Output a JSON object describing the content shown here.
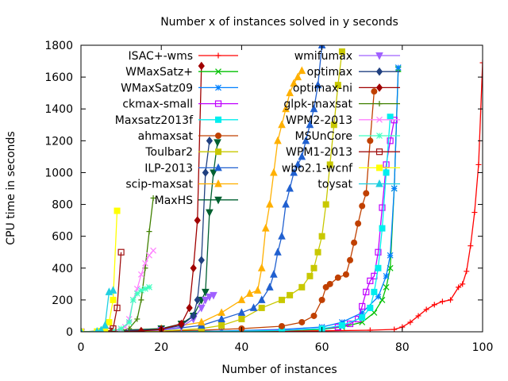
{
  "chart_data": {
    "type": "line",
    "title": "Number x of instances solved in y seconds",
    "xlabel": "Number of instances",
    "ylabel": "CPU time in seconds",
    "xlim": [
      0,
      100
    ],
    "ylim": [
      0,
      1800
    ],
    "xticks": [
      0,
      20,
      40,
      60,
      80,
      100
    ],
    "yticks": [
      0,
      200,
      400,
      600,
      800,
      1000,
      1200,
      1400,
      1600,
      1800
    ],
    "grid": false,
    "legend_position": "top-right, two columns inside plot",
    "series": [
      {
        "name": "ISAC+-wms",
        "color": "#ff0000",
        "marker": "plus",
        "x": [
          0,
          20,
          40,
          60,
          72,
          78,
          80,
          82,
          84,
          86,
          88,
          90,
          92,
          94,
          95,
          96,
          97,
          98,
          99,
          100
        ],
        "y": [
          0,
          2,
          4,
          6,
          10,
          15,
          30,
          60,
          100,
          140,
          170,
          190,
          200,
          280,
          300,
          380,
          540,
          750,
          1050,
          1690
        ]
      },
      {
        "name": "WMaxSatz+",
        "color": "#00c000",
        "marker": "x",
        "x": [
          0,
          30,
          50,
          60,
          65,
          70,
          73,
          75,
          76,
          77,
          78,
          79
        ],
        "y": [
          0,
          2,
          8,
          15,
          30,
          60,
          120,
          200,
          280,
          400,
          900,
          1650
        ]
      },
      {
        "name": "WMaxSatz09",
        "color": "#0080ff",
        "marker": "star",
        "x": [
          0,
          35,
          50,
          60,
          65,
          70,
          74,
          76,
          77,
          78,
          79
        ],
        "y": [
          0,
          5,
          15,
          30,
          60,
          120,
          220,
          350,
          480,
          900,
          1660
        ]
      },
      {
        "name": "ckmax-small",
        "color": "#c000ff",
        "marker": "open-square",
        "x": [
          0,
          30,
          50,
          60,
          64,
          67,
          69,
          70,
          71,
          72,
          73,
          74,
          75,
          76,
          77,
          78
        ],
        "y": [
          0,
          2,
          10,
          20,
          30,
          50,
          80,
          160,
          250,
          320,
          350,
          500,
          780,
          1050,
          1200,
          1330
        ]
      },
      {
        "name": "Maxsatz2013f",
        "color": "#00eeee",
        "marker": "filled-square",
        "x": [
          0,
          30,
          50,
          60,
          65,
          70,
          72,
          73,
          74,
          75,
          76,
          77
        ],
        "y": [
          0,
          2,
          8,
          20,
          40,
          90,
          150,
          250,
          400,
          650,
          1000,
          1350
        ]
      },
      {
        "name": "ahmaxsat",
        "color": "#c04000",
        "marker": "filled-circle",
        "x": [
          0,
          10,
          20,
          30,
          40,
          50,
          55,
          58,
          60,
          61,
          62,
          64,
          66,
          67,
          68,
          69,
          70,
          71,
          72,
          73
        ],
        "y": [
          0,
          2,
          5,
          10,
          20,
          35,
          60,
          100,
          200,
          280,
          300,
          340,
          360,
          450,
          560,
          680,
          790,
          870,
          1200,
          1510
        ]
      },
      {
        "name": "Toulbar2",
        "color": "#c8c800",
        "marker": "filled-square",
        "x": [
          0,
          20,
          30,
          35,
          40,
          45,
          50,
          52,
          55,
          57,
          58,
          59,
          60,
          61,
          62,
          63,
          64,
          65
        ],
        "y": [
          0,
          5,
          20,
          40,
          80,
          150,
          200,
          230,
          280,
          350,
          400,
          500,
          600,
          800,
          1050,
          1300,
          1550,
          1760
        ]
      },
      {
        "name": "ILP-2013",
        "color": "#2060d0",
        "marker": "filled-triangle",
        "x": [
          0,
          20,
          30,
          35,
          40,
          43,
          45,
          47,
          48,
          49,
          50,
          51,
          52,
          53,
          54,
          55,
          56,
          57,
          58,
          59,
          60
        ],
        "y": [
          0,
          10,
          40,
          80,
          120,
          150,
          200,
          280,
          360,
          500,
          600,
          800,
          900,
          1000,
          1050,
          1100,
          1200,
          1300,
          1400,
          1550,
          1800
        ]
      },
      {
        "name": "scip-maxsat",
        "color": "#ffb000",
        "marker": "filled-triangle",
        "x": [
          0,
          20,
          30,
          35,
          40,
          42,
          44,
          45,
          46,
          47,
          48,
          49,
          50,
          51,
          52,
          53,
          54,
          55
        ],
        "y": [
          0,
          20,
          60,
          120,
          200,
          240,
          260,
          400,
          650,
          800,
          1000,
          1200,
          1300,
          1400,
          1500,
          1560,
          1600,
          1640
        ]
      },
      {
        "name": "MaxHS",
        "color": "#006030",
        "marker": "filled-triangle-down",
        "x": [
          0,
          20,
          25,
          28,
          30,
          31,
          32,
          33,
          34
        ],
        "y": [
          0,
          20,
          50,
          100,
          200,
          250,
          750,
          1000,
          1190
        ]
      },
      {
        "name": "wmifumax",
        "color": "#a060ff",
        "marker": "filled-triangle-down",
        "x": [
          0,
          20,
          25,
          28,
          30,
          31,
          32,
          33
        ],
        "y": [
          0,
          10,
          30,
          80,
          150,
          200,
          220,
          230
        ]
      },
      {
        "name": "optimax",
        "color": "#204080",
        "marker": "filled-diamond",
        "x": [
          0,
          20,
          25,
          28,
          29,
          30,
          31,
          32
        ],
        "y": [
          0,
          15,
          40,
          100,
          200,
          450,
          1000,
          1200
        ]
      },
      {
        "name": "optimax-ni",
        "color": "#a00000",
        "marker": "filled-diamond",
        "x": [
          0,
          10,
          15,
          20,
          25,
          27,
          28,
          29,
          30
        ],
        "y": [
          0,
          2,
          5,
          15,
          50,
          150,
          400,
          700,
          1670
        ]
      },
      {
        "name": "glpk-maxsat",
        "color": "#408000",
        "marker": "plus",
        "x": [
          0,
          10,
          12,
          14,
          15,
          16,
          17,
          18
        ],
        "y": [
          0,
          5,
          20,
          80,
          200,
          400,
          630,
          840
        ]
      },
      {
        "name": "WPM2-2013",
        "color": "#ff80ff",
        "marker": "x",
        "x": [
          0,
          8,
          10,
          11,
          12,
          13,
          14,
          15,
          16,
          17,
          18
        ],
        "y": [
          0,
          5,
          10,
          30,
          80,
          200,
          270,
          360,
          430,
          480,
          510
        ]
      },
      {
        "name": "MSUnCore",
        "color": "#40ffc0",
        "marker": "star",
        "x": [
          0,
          8,
          10,
          12,
          13,
          14,
          15,
          16,
          17
        ],
        "y": [
          0,
          5,
          20,
          60,
          200,
          240,
          260,
          270,
          280
        ]
      },
      {
        "name": "WPM1-2013",
        "color": "#a01010",
        "marker": "open-square",
        "x": [
          0,
          5,
          7,
          8,
          9,
          10
        ],
        "y": [
          0,
          2,
          5,
          20,
          150,
          500
        ]
      },
      {
        "name": "wbo2.1-wcnf",
        "color": "#ffff00",
        "marker": "filled-square",
        "x": [
          0,
          4,
          5,
          6,
          7,
          8,
          9
        ],
        "y": [
          0,
          2,
          5,
          15,
          60,
          200,
          760
        ]
      },
      {
        "name": "toysat",
        "color": "#20d0e0",
        "marker": "filled-triangle",
        "x": [
          0,
          4,
          5,
          6,
          7,
          8
        ],
        "y": [
          0,
          2,
          10,
          40,
          250,
          260
        ]
      }
    ]
  }
}
